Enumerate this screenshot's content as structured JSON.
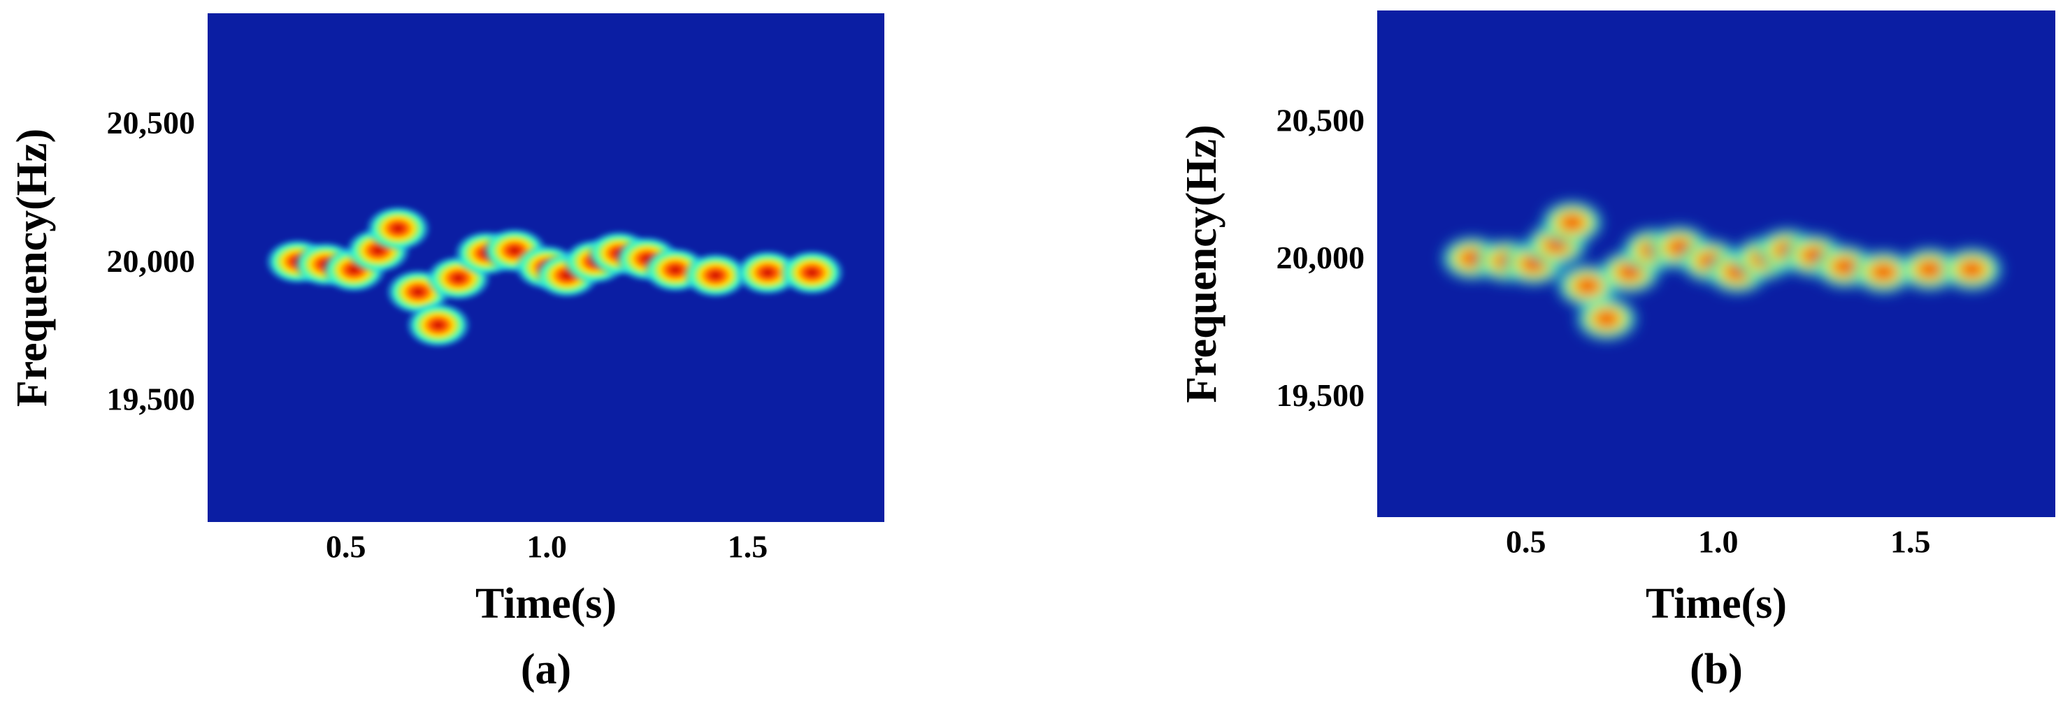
{
  "chart_data": [
    {
      "type": "spectrogram",
      "caption": "(a)",
      "xlabel": "Time(s)",
      "ylabel": "Frequency(Hz)",
      "background": "#0b1ea3",
      "blur": 3,
      "xlim": [
        0.156,
        1.84
      ],
      "ylim": [
        19067,
        20909
      ],
      "xticks": [
        0.5,
        {
          "value": 1,
          "label": "1.0"
        },
        1.5
      ],
      "yticks": [
        {
          "value": 19500,
          "label": "19,500"
        },
        {
          "value": 20000,
          "label": "20,000"
        },
        {
          "value": 20500,
          "label": "20,500"
        }
      ],
      "x": [
        0.38,
        0.45,
        0.52,
        0.58,
        0.63,
        0.68,
        0.73,
        0.78,
        0.85,
        0.92,
        1.0,
        1.05,
        1.12,
        1.18,
        1.25,
        1.32,
        1.42,
        1.55,
        1.66
      ],
      "values": [
        20010,
        20000,
        19980,
        20050,
        20130,
        19900,
        19780,
        19950,
        20040,
        20050,
        19990,
        19960,
        20010,
        20040,
        20020,
        19980,
        19960,
        19970,
        19970
      ]
    },
    {
      "type": "spectrogram",
      "caption": "(b)",
      "xlabel": "Time(s)",
      "ylabel": "Frequency(Hz)",
      "background": "#0b1ea3",
      "blur": 9,
      "xlim": [
        0.113,
        1.877
      ],
      "ylim": [
        19069,
        20911
      ],
      "xticks": [
        0.5,
        {
          "value": 1,
          "label": "1.0"
        },
        1.5
      ],
      "yticks": [
        {
          "value": 19500,
          "label": "19,500"
        },
        {
          "value": 20000,
          "label": "20,000"
        },
        {
          "value": 20500,
          "label": "20,500"
        }
      ],
      "x": [
        0.36,
        0.45,
        0.52,
        0.58,
        0.62,
        0.66,
        0.71,
        0.77,
        0.83,
        0.9,
        0.98,
        1.05,
        1.12,
        1.18,
        1.25,
        1.33,
        1.43,
        1.55,
        1.66
      ],
      "values": [
        20010,
        20000,
        19990,
        20060,
        20140,
        19910,
        19790,
        19960,
        20040,
        20050,
        20000,
        19960,
        20010,
        20040,
        20020,
        19980,
        19960,
        19970,
        19970
      ]
    }
  ]
}
